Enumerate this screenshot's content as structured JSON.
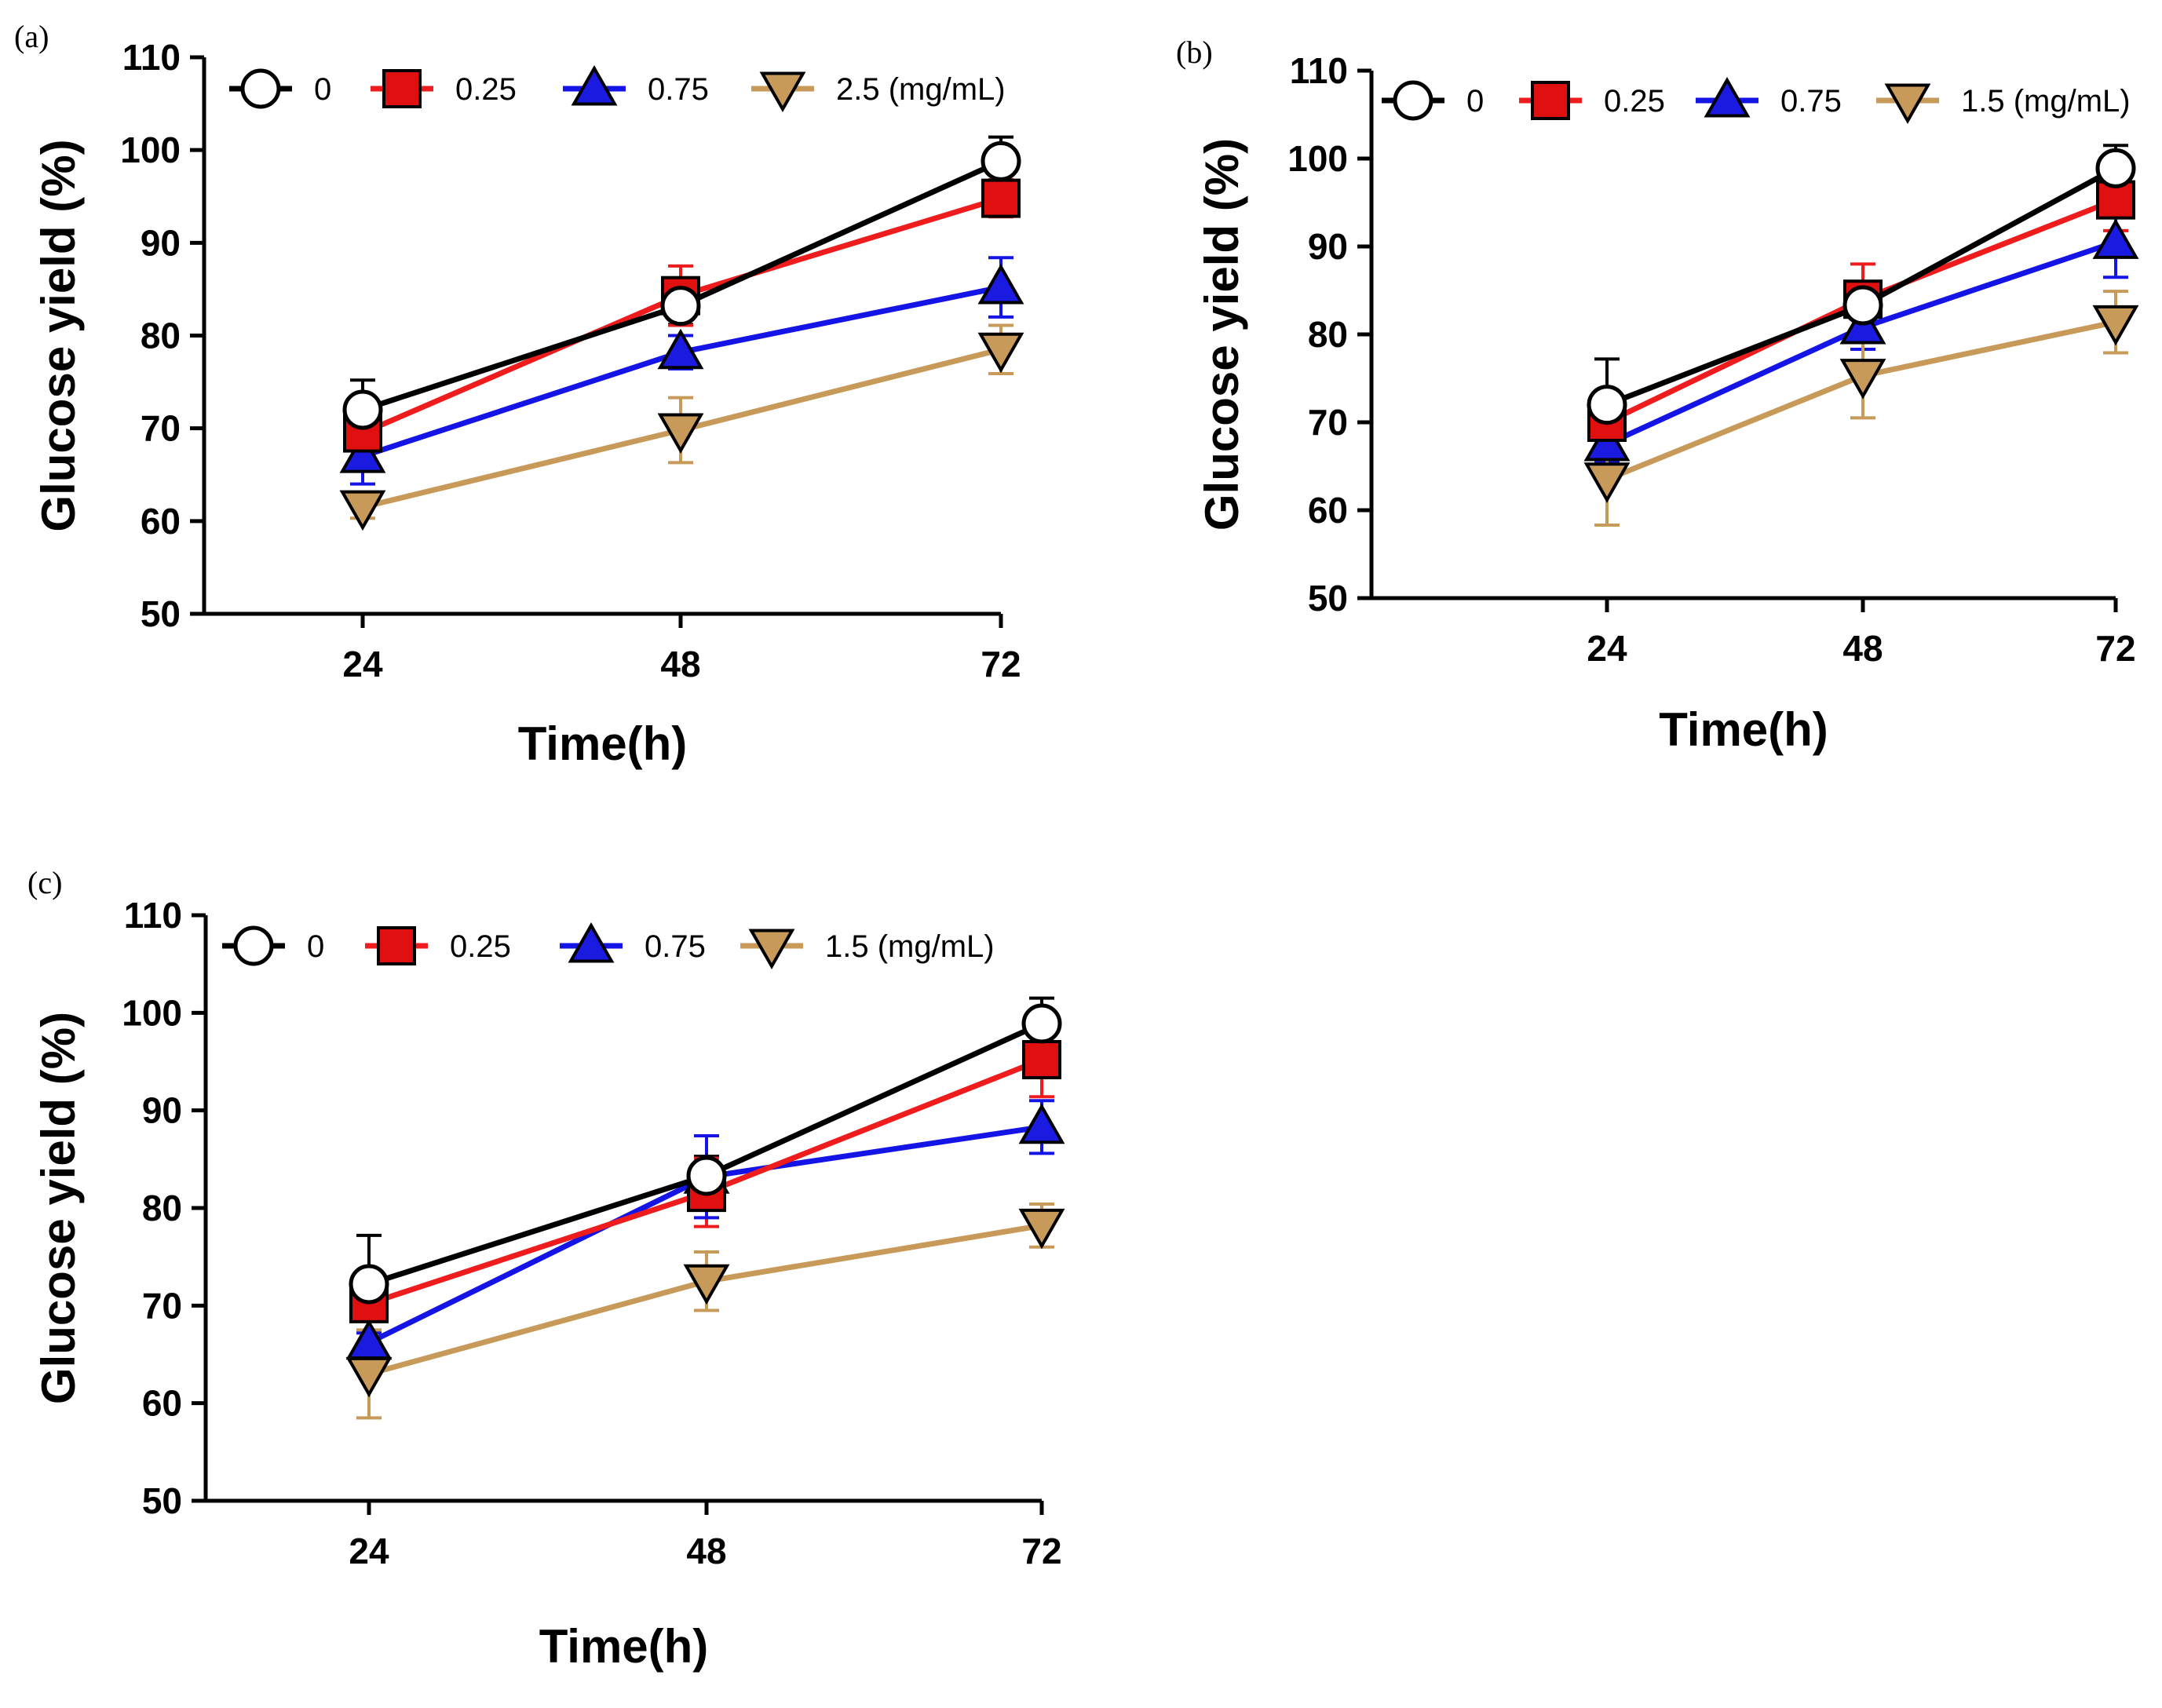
{
  "figure": {
    "panels": [
      "(a)",
      "(b)",
      "(c)"
    ]
  },
  "colors": {
    "c0": "#000000",
    "c025": "#ee1c1c",
    "c075": "#1414e6",
    "c15": "#c79a5a",
    "fill0": "#ffffff",
    "fill025": "#e01010",
    "fill075": "#1a1ae0",
    "fill15": "#c79a5a"
  },
  "chart_data": [
    {
      "panel": "(a)",
      "type": "line",
      "xlabel": "Time(h)",
      "ylabel": "Glucose yield (%)",
      "categories": [
        "24",
        "48",
        "72"
      ],
      "ylim": [
        50,
        110
      ],
      "yticks": [
        "50",
        "60",
        "70",
        "80",
        "90",
        "100",
        "110"
      ],
      "legend_position": "top",
      "series": [
        {
          "name": "0",
          "marker": "circle",
          "values": [
            72.0,
            83.2,
            98.8
          ],
          "errors": [
            3.2,
            2.0,
            2.6
          ]
        },
        {
          "name": "0.25",
          "marker": "square",
          "values": [
            69.5,
            84.3,
            94.8
          ],
          "errors": [
            2.5,
            3.2,
            2.0
          ]
        },
        {
          "name": "0.75",
          "marker": "triangle-up",
          "values": [
            67.0,
            78.2,
            85.2
          ],
          "errors": [
            3.0,
            1.8,
            3.2
          ]
        },
        {
          "name": "2.5 (mg/mL)",
          "marker": "triangle-down",
          "values": [
            61.5,
            69.8,
            78.5
          ],
          "errors": [
            1.2,
            3.5,
            2.6
          ]
        }
      ]
    },
    {
      "panel": "(b)",
      "type": "line",
      "xlabel": "Time(h)",
      "ylabel": "Glucose yield (%)",
      "categories": [
        "24",
        "48",
        "72"
      ],
      "ylim": [
        50,
        110
      ],
      "yticks": [
        "50",
        "60",
        "70",
        "80",
        "90",
        "100",
        "110"
      ],
      "legend_position": "top",
      "series": [
        {
          "name": "0",
          "marker": "circle",
          "values": [
            72.0,
            83.3,
            98.9
          ],
          "errors": [
            5.2,
            1.5,
            2.6
          ]
        },
        {
          "name": "0.25",
          "marker": "square",
          "values": [
            70.0,
            84.0,
            95.3
          ],
          "errors": [
            3.0,
            4.0,
            3.5
          ]
        },
        {
          "name": "0.75",
          "marker": "triangle-up",
          "values": [
            67.5,
            80.8,
            90.5
          ],
          "errors": [
            2.0,
            2.5,
            4.0
          ]
        },
        {
          "name": "1.5 (mg/mL)",
          "marker": "triangle-down",
          "values": [
            63.5,
            75.3,
            81.4
          ],
          "errors": [
            5.2,
            4.8,
            3.5
          ]
        }
      ]
    },
    {
      "panel": "(c)",
      "type": "line",
      "xlabel": "Time(h)",
      "ylabel": "Glucose yield (%)",
      "categories": [
        "24",
        "48",
        "72"
      ],
      "ylim": [
        50,
        110
      ],
      "yticks": [
        "50",
        "60",
        "70",
        "80",
        "90",
        "100",
        "110"
      ],
      "legend_position": "top",
      "series": [
        {
          "name": "0",
          "marker": "circle",
          "values": [
            72.2,
            83.3,
            98.9
          ],
          "errors": [
            5.0,
            2.0,
            2.6
          ]
        },
        {
          "name": "0.25",
          "marker": "square",
          "values": [
            70.2,
            81.6,
            95.2
          ],
          "errors": [
            3.0,
            3.5,
            3.8
          ]
        },
        {
          "name": "0.75",
          "marker": "triangle-up",
          "values": [
            66.2,
            83.2,
            88.3
          ],
          "errors": [
            1.0,
            4.2,
            2.7
          ]
        },
        {
          "name": "1.5 (mg/mL)",
          "marker": "triangle-down",
          "values": [
            63.0,
            72.5,
            78.2
          ],
          "errors": [
            4.5,
            3.0,
            2.2
          ]
        }
      ]
    }
  ]
}
